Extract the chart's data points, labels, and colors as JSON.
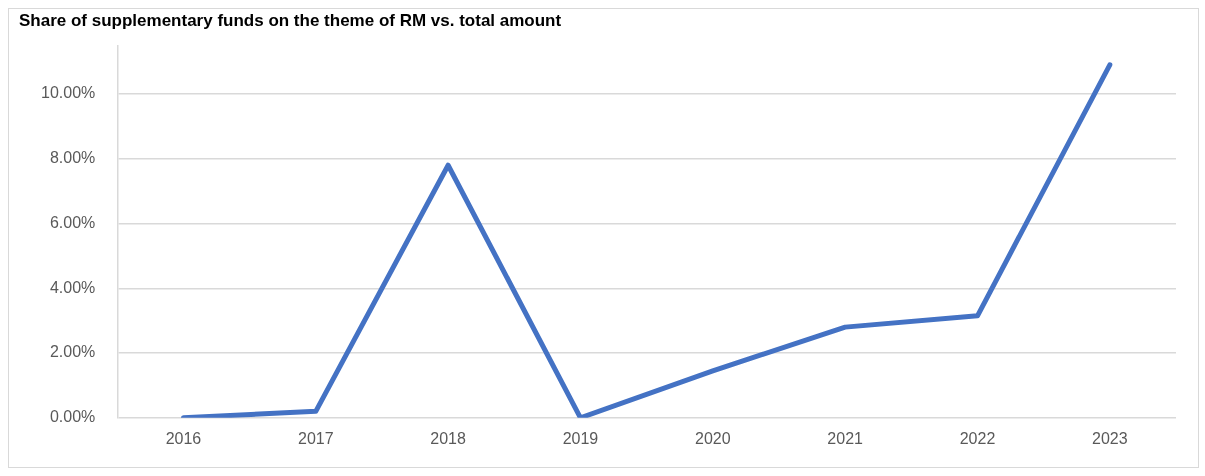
{
  "chart_data": {
    "type": "line",
    "title": "Share of supplementary funds on the theme of RM vs. total amount",
    "categories": [
      "2016",
      "2017",
      "2018",
      "2019",
      "2020",
      "2021",
      "2022",
      "2023"
    ],
    "series": [
      {
        "color": "#4472c4",
        "values": [
          0,
          0.2,
          7.8,
          0,
          1.45,
          2.8,
          3.15,
          10.9
        ]
      }
    ],
    "ylim": [
      0,
      11.5
    ],
    "yticks": [
      {
        "value": 0,
        "label": "0.00%"
      },
      {
        "value": 2,
        "label": "2.00%"
      },
      {
        "value": 4,
        "label": "4.00%"
      },
      {
        "value": 6,
        "label": "6.00%"
      },
      {
        "value": 8,
        "label": "8.00%"
      },
      {
        "value": 10,
        "label": "10.00%"
      }
    ],
    "grid": "y",
    "legend": false,
    "marker": "none",
    "line_style": "solid"
  }
}
